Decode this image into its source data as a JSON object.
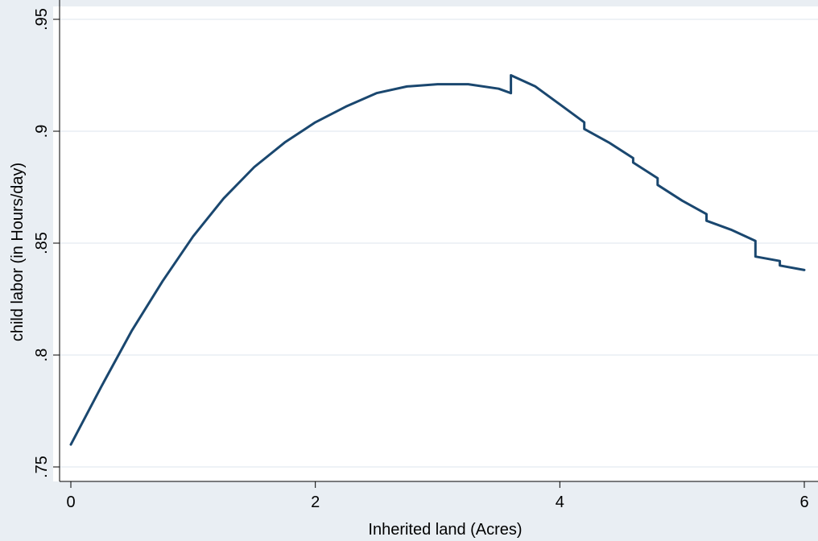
{
  "chart_data": {
    "type": "line",
    "title": "",
    "xlabel": "Inherited land (Acres)",
    "ylabel": "child labor (in Hours/day)",
    "xlim": [
      -0.1,
      6.05
    ],
    "ylim": [
      0.745,
      0.956
    ],
    "x_ticks": [
      0,
      2,
      4,
      6
    ],
    "x_tick_labels": [
      "0",
      "2",
      "4",
      "6"
    ],
    "y_ticks": [
      0.75,
      0.8,
      0.85,
      0.9,
      0.95
    ],
    "y_tick_labels": [
      ".75",
      ".8",
      ".85",
      ".9",
      ".95"
    ],
    "grid": true,
    "legend": "none",
    "colors": {
      "background": "#e9eef3",
      "plot_area": "#ffffff",
      "line": "#1a476f",
      "grid": "#e9eef3"
    },
    "series": [
      {
        "x": [
          0,
          0.25,
          0.5,
          0.75,
          1.0,
          1.25,
          1.5,
          1.75,
          2.0,
          2.25,
          2.5,
          2.75,
          3.0,
          3.25,
          3.5,
          3.6,
          3.6,
          3.8,
          4.0,
          4.2,
          4.2,
          4.4,
          4.6,
          4.6,
          4.8,
          4.8,
          5.0,
          5.2,
          5.2,
          5.4,
          5.6,
          5.6,
          5.8,
          5.8,
          6.0
        ],
        "y": [
          0.76,
          0.786,
          0.811,
          0.833,
          0.853,
          0.87,
          0.884,
          0.895,
          0.904,
          0.911,
          0.917,
          0.92,
          0.921,
          0.921,
          0.919,
          0.917,
          0.925,
          0.92,
          0.912,
          0.904,
          0.901,
          0.895,
          0.888,
          0.886,
          0.879,
          0.876,
          0.869,
          0.863,
          0.86,
          0.856,
          0.851,
          0.844,
          0.842,
          0.84,
          0.838
        ]
      }
    ]
  }
}
